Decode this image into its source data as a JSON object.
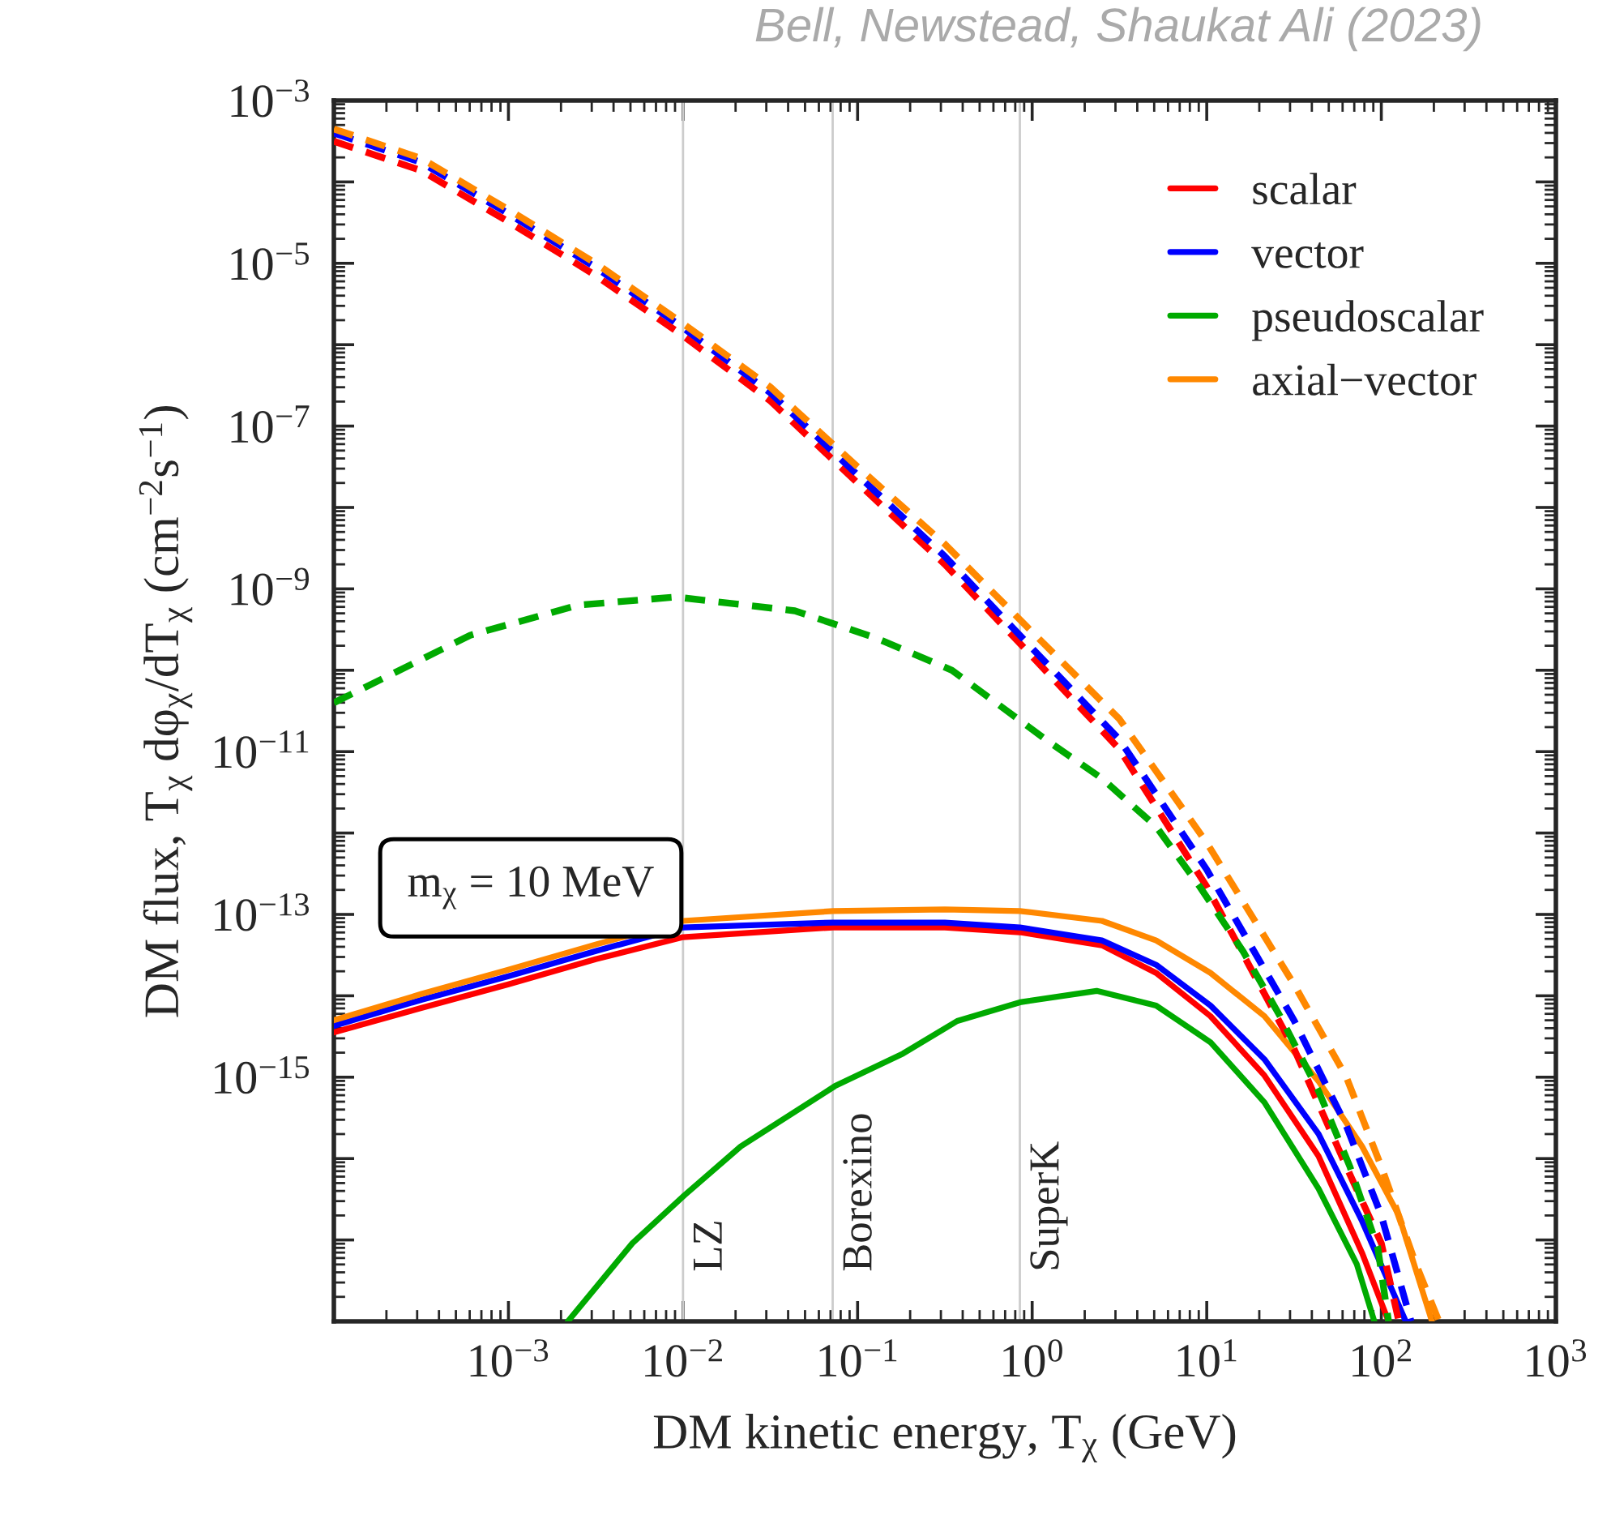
{
  "chart_data": {
    "type": "line",
    "log": "xy",
    "xlabel": "DM kinetic energy, T$_{χ}$ (GeV)",
    "ylabel": "DM flux, T$_{χ}$ dφ$_{χ}$/dT$_{χ}$ (cm$^{−2}$s$^{−1}$)",
    "annotations": [
      "Bell, Newstead, Shaukat Ali (2023)",
      "m$_{χ}$ = 10 MeV"
    ],
    "xlim": [
      0.0001,
      1000
    ],
    "ylim": [
      1e-18,
      0.001
    ],
    "xticks": [
      {
        "value": 0.0001,
        "label": null
      },
      {
        "value": 0.001,
        "label": "10$^{−3}$"
      },
      {
        "value": 0.01,
        "label": "10$^{−2}$"
      },
      {
        "value": 0.1,
        "label": "10$^{−1}$"
      },
      {
        "value": 1,
        "label": "10$^{0}$"
      },
      {
        "value": 10,
        "label": "10$^{1}$"
      },
      {
        "value": 100,
        "label": "10$^{2}$"
      },
      {
        "value": 1000,
        "label": "10$^{3}$"
      }
    ],
    "yticks": [
      {
        "value": 0.001,
        "label": "10$^{−3}$"
      },
      {
        "value": 0.0001,
        "label": null
      },
      {
        "value": 1e-05,
        "label": "10$^{−5}$"
      },
      {
        "value": 1e-06,
        "label": null
      },
      {
        "value": 1e-07,
        "label": "10$^{−7}$"
      },
      {
        "value": 1e-08,
        "label": null
      },
      {
        "value": 1e-09,
        "label": "10$^{−9}$"
      },
      {
        "value": 1e-10,
        "label": null
      },
      {
        "value": 1e-11,
        "label": "10$^{−11}$"
      },
      {
        "value": 1e-12,
        "label": null
      },
      {
        "value": 1e-13,
        "label": "10$^{−13}$"
      },
      {
        "value": 1e-14,
        "label": null
      },
      {
        "value": 1e-15,
        "label": "10$^{−15}$"
      },
      {
        "value": 1e-16,
        "label": null
      },
      {
        "value": 1e-17,
        "label": null
      },
      {
        "value": 1e-18,
        "label": null
      }
    ],
    "grid": false,
    "legend": "top right",
    "ref_lines": [
      {
        "axis": "x",
        "value": 0.01,
        "label": "LZ",
        "color": "#cccccc"
      },
      {
        "axis": "x",
        "value": 0.072,
        "label": "Borexino",
        "color": "#cccccc"
      },
      {
        "axis": "x",
        "value": 0.85,
        "label": "SuperK",
        "color": "#cccccc"
      }
    ],
    "series": [
      {
        "name": "scalar",
        "color": "#ff0000",
        "line_style": "solid",
        "x": [
          0.0001,
          0.000316,
          0.001,
          0.00316,
          0.01,
          0.0724,
          0.316,
          0.851,
          2.51,
          5.13,
          10.5,
          21.4,
          43.7,
          77.6,
          110
        ],
        "values": [
          3.55e-15,
          7.08e-15,
          1.38e-14,
          2.82e-14,
          5.25e-14,
          6.92e-14,
          6.92e-14,
          6.03e-14,
          4.17e-14,
          1.91e-14,
          5.62e-15,
          1.05e-15,
          1.07e-16,
          6.92e-18,
          1e-18
        ]
      },
      {
        "name": "vector",
        "color": "#0000ff",
        "line_style": "solid",
        "x": [
          0.0001,
          0.000316,
          0.001,
          0.00316,
          0.01,
          0.0724,
          0.316,
          0.851,
          2.51,
          5.13,
          10.5,
          21.4,
          43.7,
          77.6,
          138
        ],
        "values": [
          4.27e-15,
          8.91e-15,
          1.74e-14,
          3.55e-14,
          6.92e-14,
          7.94e-14,
          7.94e-14,
          6.92e-14,
          4.79e-14,
          2.4e-14,
          7.59e-15,
          1.66e-15,
          2e-16,
          1.7e-17,
          1e-18
        ]
      },
      {
        "name": "pseudoscalar",
        "color": "#00aa00",
        "line_style": "solid",
        "x": [
          0.00219,
          0.00513,
          0.0102,
          0.0214,
          0.0741,
          0.182,
          0.372,
          0.851,
          2.34,
          5.13,
          10.5,
          21.4,
          43.7,
          72.4,
          91.2
        ],
        "values": [
          1e-18,
          9.12e-18,
          3.55e-17,
          1.41e-16,
          7.76e-16,
          1.95e-15,
          4.9e-15,
          8.32e-15,
          1.15e-14,
          7.59e-15,
          2.69e-15,
          4.9e-16,
          4.27e-17,
          5.01e-18,
          1e-18
        ]
      },
      {
        "name": "axial−vector",
        "color": "#ff8800",
        "line_style": "solid",
        "x": [
          0.0001,
          0.000316,
          0.001,
          0.00316,
          0.01,
          0.0724,
          0.316,
          0.851,
          2.51,
          5.13,
          10.5,
          21.4,
          43.7,
          77.6,
          126,
          195
        ],
        "values": [
          5.01e-15,
          1.05e-14,
          2.09e-14,
          4.27e-14,
          8.32e-14,
          1.1e-13,
          1.15e-13,
          1.1e-13,
          8.32e-14,
          4.79e-14,
          1.91e-14,
          5.62e-15,
          8.91e-16,
          1.41e-16,
          2e-17,
          1e-18
        ]
      },
      {
        "color": "#ff0000",
        "line_style": "dashed",
        "x": [
          0.0001,
          0.000316,
          0.001,
          0.00316,
          0.01,
          0.0316,
          0.1,
          0.316,
          1,
          3.16,
          10,
          31.6,
          63.1,
          100,
          126
        ],
        "values": [
          0.000316,
          0.000138,
          3.24e-05,
          7.08e-06,
          1.29e-06,
          2.04e-07,
          2e-08,
          2e-09,
          1.48e-10,
          1.07e-11,
          2.19e-13,
          2.24e-15,
          7.94e-17,
          9.12e-18,
          1e-18
        ]
      },
      {
        "color": "#0000ff",
        "line_style": "dashed",
        "x": [
          0.0001,
          0.000316,
          0.001,
          0.00316,
          0.01,
          0.0316,
          0.1,
          0.316,
          1,
          3.16,
          10,
          31.6,
          63.1,
          100,
          148
        ],
        "values": [
          0.000398,
          0.000174,
          4.07e-05,
          8.91e-06,
          1.62e-06,
          2.57e-07,
          2.51e-08,
          2.51e-09,
          1.86e-10,
          1.41e-11,
          3.55e-13,
          5.01e-15,
          2.51e-16,
          2e-17,
          1e-18
        ]
      },
      {
        "color": "#00aa00",
        "line_style": "dashed",
        "x": [
          0.0001,
          0.000603,
          0.00251,
          0.00912,
          0.0437,
          0.126,
          0.347,
          1.23,
          2.51,
          5.13,
          9.12,
          16.2,
          26.3,
          43.7,
          66.1,
          95.5,
          110
        ],
        "values": [
          3.98e-11,
          2.69e-10,
          6.31e-10,
          7.94e-10,
          5.37e-10,
          2.51e-10,
          1e-10,
          1.35e-11,
          4.68e-12,
          1.2e-12,
          2.19e-13,
          3.47e-14,
          5.62e-15,
          6.76e-16,
          7.94e-17,
          7.94e-18,
          1e-18
        ]
      },
      {
        "color": "#ff8800",
        "line_style": "dashed",
        "x": [
          0.0001,
          0.000316,
          0.001,
          0.00316,
          0.01,
          0.0316,
          0.1,
          0.316,
          1,
          3.16,
          10,
          31.6,
          63.1,
          100,
          158,
          214
        ],
        "values": [
          0.000447,
          0.000195,
          4.57e-05,
          1e-05,
          1.82e-06,
          3.02e-07,
          3.16e-08,
          3.55e-09,
          2.95e-10,
          2.51e-11,
          7.59e-13,
          1.38e-14,
          1e-15,
          7.94e-17,
          5.01e-18,
          1e-18
        ]
      }
    ]
  }
}
